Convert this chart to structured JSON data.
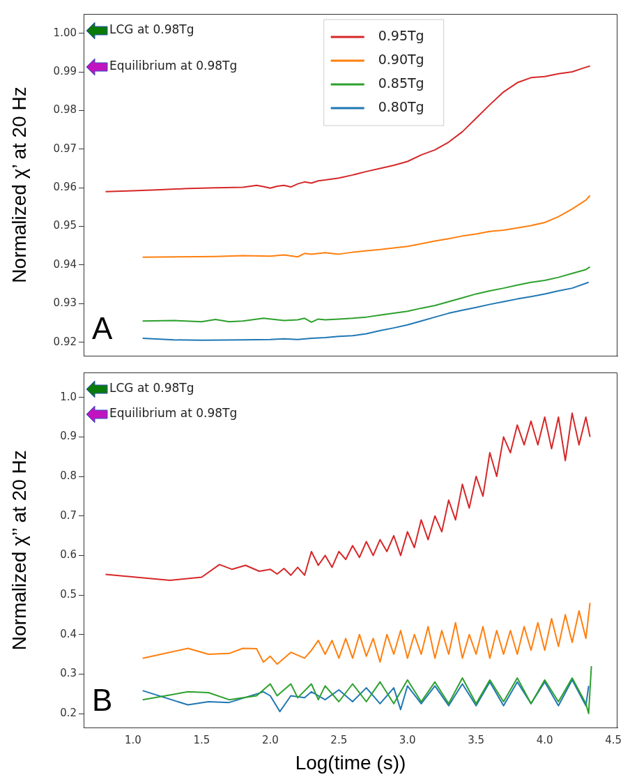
{
  "chart_data": [
    {
      "type": "line",
      "ylabel": "Normalized χ’ at 20 Hz",
      "xlim": [
        0.64,
        4.53
      ],
      "ylim": [
        0.9165,
        1.005
      ],
      "xticks": [
        {
          "value": 1,
          "label": null
        },
        {
          "value": 1.5,
          "label": null
        },
        {
          "value": 2,
          "label": null
        },
        {
          "value": 2.5,
          "label": null
        },
        {
          "value": 3,
          "label": null
        },
        {
          "value": 3.5,
          "label": null
        },
        {
          "value": 4,
          "label": null
        },
        {
          "value": 4.5,
          "label": null
        }
      ],
      "yticks": [
        0.92,
        0.93,
        0.94,
        0.95,
        0.96,
        0.97,
        0.98,
        0.99,
        {
          "value": 1,
          "label": "1.00"
        }
      ],
      "tick_labels": "y",
      "grid": false,
      "legend": "top",
      "marker": "none",
      "line_style": "solid",
      "annotations": [
        "LCG at 0.98Tg",
        "Equilibrium at 0.98Tg",
        "A"
      ],
      "series": [
        {
          "name": "0.95Tg",
          "color": "#d62728",
          "x": [
            0.8,
            1.0,
            1.2,
            1.4,
            1.6,
            1.8,
            1.9,
            1.95,
            2.0,
            2.05,
            2.1,
            2.15,
            2.2,
            2.25,
            2.3,
            2.35,
            2.4,
            2.5,
            2.6,
            2.7,
            2.8,
            2.9,
            3.0,
            3.1,
            3.2,
            3.3,
            3.4,
            3.5,
            3.6,
            3.7,
            3.8,
            3.9,
            4.0,
            4.1,
            4.2,
            4.3,
            4.33
          ],
          "values": [
            0.959,
            0.9592,
            0.9595,
            0.9598,
            0.96,
            0.9601,
            0.9606,
            0.9603,
            0.9599,
            0.9604,
            0.9606,
            0.9602,
            0.961,
            0.9615,
            0.9612,
            0.9618,
            0.962,
            0.9625,
            0.9633,
            0.9642,
            0.965,
            0.9658,
            0.9668,
            0.9685,
            0.9698,
            0.9718,
            0.9745,
            0.978,
            0.9815,
            0.9848,
            0.9872,
            0.9885,
            0.9888,
            0.9895,
            0.99,
            0.9912,
            0.9915
          ]
        },
        {
          "name": "0.90Tg",
          "color": "#ff7f0e",
          "x": [
            1.07,
            1.3,
            1.6,
            1.8,
            2.0,
            2.1,
            2.2,
            2.25,
            2.3,
            2.4,
            2.5,
            2.6,
            2.7,
            2.8,
            2.9,
            3.0,
            3.1,
            3.2,
            3.3,
            3.4,
            3.5,
            3.6,
            3.7,
            3.8,
            3.9,
            4.0,
            4.1,
            4.2,
            4.3,
            4.33
          ],
          "values": [
            0.942,
            0.9421,
            0.9422,
            0.9424,
            0.9423,
            0.9426,
            0.9421,
            0.943,
            0.9428,
            0.9432,
            0.9428,
            0.9433,
            0.9437,
            0.944,
            0.9444,
            0.9448,
            0.9455,
            0.9462,
            0.9468,
            0.9475,
            0.948,
            0.9487,
            0.949,
            0.9496,
            0.9502,
            0.951,
            0.9525,
            0.9545,
            0.9568,
            0.958
          ]
        },
        {
          "name": "0.85Tg",
          "color": "#2ca02c",
          "x": [
            1.07,
            1.3,
            1.5,
            1.6,
            1.7,
            1.8,
            1.95,
            2.1,
            2.2,
            2.25,
            2.3,
            2.35,
            2.4,
            2.5,
            2.6,
            2.7,
            2.8,
            2.9,
            3.0,
            3.1,
            3.2,
            3.3,
            3.4,
            3.5,
            3.6,
            3.7,
            3.8,
            3.9,
            4.0,
            4.1,
            4.2,
            4.3,
            4.33
          ],
          "values": [
            0.9255,
            0.9256,
            0.9253,
            0.9259,
            0.9253,
            0.9255,
            0.9262,
            0.9256,
            0.9258,
            0.9262,
            0.9252,
            0.926,
            0.9258,
            0.926,
            0.9262,
            0.9265,
            0.927,
            0.9275,
            0.928,
            0.9288,
            0.9295,
            0.9305,
            0.9315,
            0.9325,
            0.9333,
            0.934,
            0.9348,
            0.9355,
            0.936,
            0.9368,
            0.9378,
            0.9388,
            0.9395
          ]
        },
        {
          "name": "0.80Tg",
          "color": "#1f77b4",
          "x": [
            1.07,
            1.3,
            1.5,
            1.8,
            2.0,
            2.1,
            2.2,
            2.3,
            2.4,
            2.5,
            2.6,
            2.7,
            2.8,
            2.9,
            3.0,
            3.1,
            3.2,
            3.3,
            3.4,
            3.5,
            3.6,
            3.7,
            3.8,
            3.9,
            4.0,
            4.1,
            4.2,
            4.32
          ],
          "values": [
            0.921,
            0.9206,
            0.9205,
            0.9206,
            0.9207,
            0.9209,
            0.9207,
            0.921,
            0.9212,
            0.9215,
            0.9217,
            0.9222,
            0.923,
            0.9237,
            0.9245,
            0.9255,
            0.9265,
            0.9275,
            0.9283,
            0.929,
            0.9298,
            0.9305,
            0.9312,
            0.9318,
            0.9325,
            0.9333,
            0.934,
            0.9355
          ]
        }
      ]
    },
    {
      "type": "line",
      "ylabel": "Normalized χ’’ at 20 Hz",
      "xlabel": "Log(time (s))",
      "xlim": [
        0.64,
        4.53
      ],
      "ylim": [
        0.164,
        1.063
      ],
      "xticks": [
        {
          "value": 1,
          "label": "1.0"
        },
        1.5,
        {
          "value": 2,
          "label": "2.0"
        },
        2.5,
        {
          "value": 3,
          "label": "3.0"
        },
        3.5,
        {
          "value": 4,
          "label": "4.0"
        },
        4.5
      ],
      "yticks": [
        0.2,
        0.3,
        0.4,
        0.5,
        0.6,
        0.7,
        0.8,
        0.9,
        {
          "value": 1,
          "label": "1.0"
        }
      ],
      "grid": false,
      "legend": false,
      "marker": "none",
      "line_style": "solid",
      "annotations": [
        "LCG at 0.98Tg",
        "Equilibrium at 0.98Tg",
        "B"
      ],
      "series": [
        {
          "color": "#d62728",
          "x": [
            0.8,
            1.27,
            1.5,
            1.63,
            1.72,
            1.82,
            1.92,
            2.0,
            2.05,
            2.1,
            2.15,
            2.2,
            2.25,
            2.3,
            2.35,
            2.4,
            2.45,
            2.5,
            2.55,
            2.6,
            2.65,
            2.7,
            2.75,
            2.8,
            2.85,
            2.9,
            2.95,
            3.0,
            3.05,
            3.1,
            3.15,
            3.2,
            3.25,
            3.3,
            3.35,
            3.4,
            3.45,
            3.5,
            3.55,
            3.6,
            3.65,
            3.7,
            3.75,
            3.8,
            3.85,
            3.9,
            3.95,
            4.0,
            4.05,
            4.1,
            4.15,
            4.2,
            4.25,
            4.3,
            4.33
          ],
          "values": [
            0.552,
            0.537,
            0.545,
            0.577,
            0.565,
            0.575,
            0.56,
            0.565,
            0.553,
            0.567,
            0.55,
            0.57,
            0.55,
            0.61,
            0.575,
            0.6,
            0.57,
            0.61,
            0.59,
            0.625,
            0.595,
            0.635,
            0.6,
            0.64,
            0.61,
            0.65,
            0.6,
            0.66,
            0.62,
            0.69,
            0.64,
            0.7,
            0.66,
            0.74,
            0.69,
            0.78,
            0.72,
            0.8,
            0.75,
            0.86,
            0.8,
            0.9,
            0.86,
            0.93,
            0.88,
            0.94,
            0.88,
            0.95,
            0.87,
            0.95,
            0.84,
            0.96,
            0.88,
            0.95,
            0.9
          ]
        },
        {
          "color": "#ff7f0e",
          "x": [
            1.07,
            1.4,
            1.55,
            1.7,
            1.8,
            1.9,
            1.95,
            2.0,
            2.05,
            2.15,
            2.25,
            2.3,
            2.35,
            2.4,
            2.45,
            2.5,
            2.55,
            2.6,
            2.65,
            2.7,
            2.75,
            2.8,
            2.85,
            2.9,
            2.95,
            3.0,
            3.05,
            3.1,
            3.15,
            3.2,
            3.25,
            3.3,
            3.35,
            3.4,
            3.45,
            3.5,
            3.55,
            3.6,
            3.65,
            3.7,
            3.75,
            3.8,
            3.85,
            3.9,
            3.95,
            4.0,
            4.05,
            4.1,
            4.15,
            4.2,
            4.25,
            4.3,
            4.33
          ],
          "values": [
            0.34,
            0.365,
            0.35,
            0.352,
            0.365,
            0.364,
            0.33,
            0.345,
            0.325,
            0.355,
            0.34,
            0.36,
            0.385,
            0.35,
            0.385,
            0.34,
            0.39,
            0.34,
            0.4,
            0.345,
            0.39,
            0.33,
            0.4,
            0.35,
            0.41,
            0.34,
            0.4,
            0.35,
            0.42,
            0.34,
            0.41,
            0.35,
            0.43,
            0.34,
            0.4,
            0.35,
            0.42,
            0.34,
            0.41,
            0.35,
            0.41,
            0.35,
            0.42,
            0.36,
            0.43,
            0.36,
            0.44,
            0.37,
            0.45,
            0.38,
            0.46,
            0.39,
            0.48
          ]
        },
        {
          "color": "#2ca02c",
          "x": [
            1.07,
            1.4,
            1.55,
            1.7,
            1.9,
            2.0,
            2.05,
            2.15,
            2.2,
            2.3,
            2.35,
            2.4,
            2.5,
            2.6,
            2.7,
            2.8,
            2.9,
            3.0,
            3.1,
            3.2,
            3.3,
            3.4,
            3.5,
            3.6,
            3.7,
            3.8,
            3.9,
            4.0,
            4.1,
            4.2,
            4.3,
            4.32,
            4.34
          ],
          "values": [
            0.235,
            0.255,
            0.253,
            0.235,
            0.245,
            0.275,
            0.245,
            0.275,
            0.24,
            0.275,
            0.235,
            0.27,
            0.23,
            0.275,
            0.23,
            0.28,
            0.225,
            0.285,
            0.23,
            0.28,
            0.225,
            0.29,
            0.225,
            0.285,
            0.23,
            0.29,
            0.225,
            0.285,
            0.23,
            0.29,
            0.225,
            0.2,
            0.32
          ]
        },
        {
          "color": "#1f77b4",
          "x": [
            1.07,
            1.4,
            1.55,
            1.7,
            1.95,
            2.0,
            2.07,
            2.15,
            2.25,
            2.3,
            2.4,
            2.5,
            2.6,
            2.7,
            2.8,
            2.9,
            2.95,
            3.0,
            3.1,
            3.2,
            3.3,
            3.4,
            3.5,
            3.6,
            3.7,
            3.8,
            3.9,
            4.0,
            4.1,
            4.2,
            4.3,
            4.32
          ],
          "values": [
            0.258,
            0.222,
            0.23,
            0.228,
            0.255,
            0.245,
            0.205,
            0.245,
            0.24,
            0.255,
            0.235,
            0.26,
            0.23,
            0.265,
            0.225,
            0.265,
            0.21,
            0.27,
            0.225,
            0.27,
            0.22,
            0.275,
            0.22,
            0.28,
            0.22,
            0.28,
            0.225,
            0.28,
            0.22,
            0.285,
            0.22,
            0.27
          ]
        }
      ]
    }
  ]
}
